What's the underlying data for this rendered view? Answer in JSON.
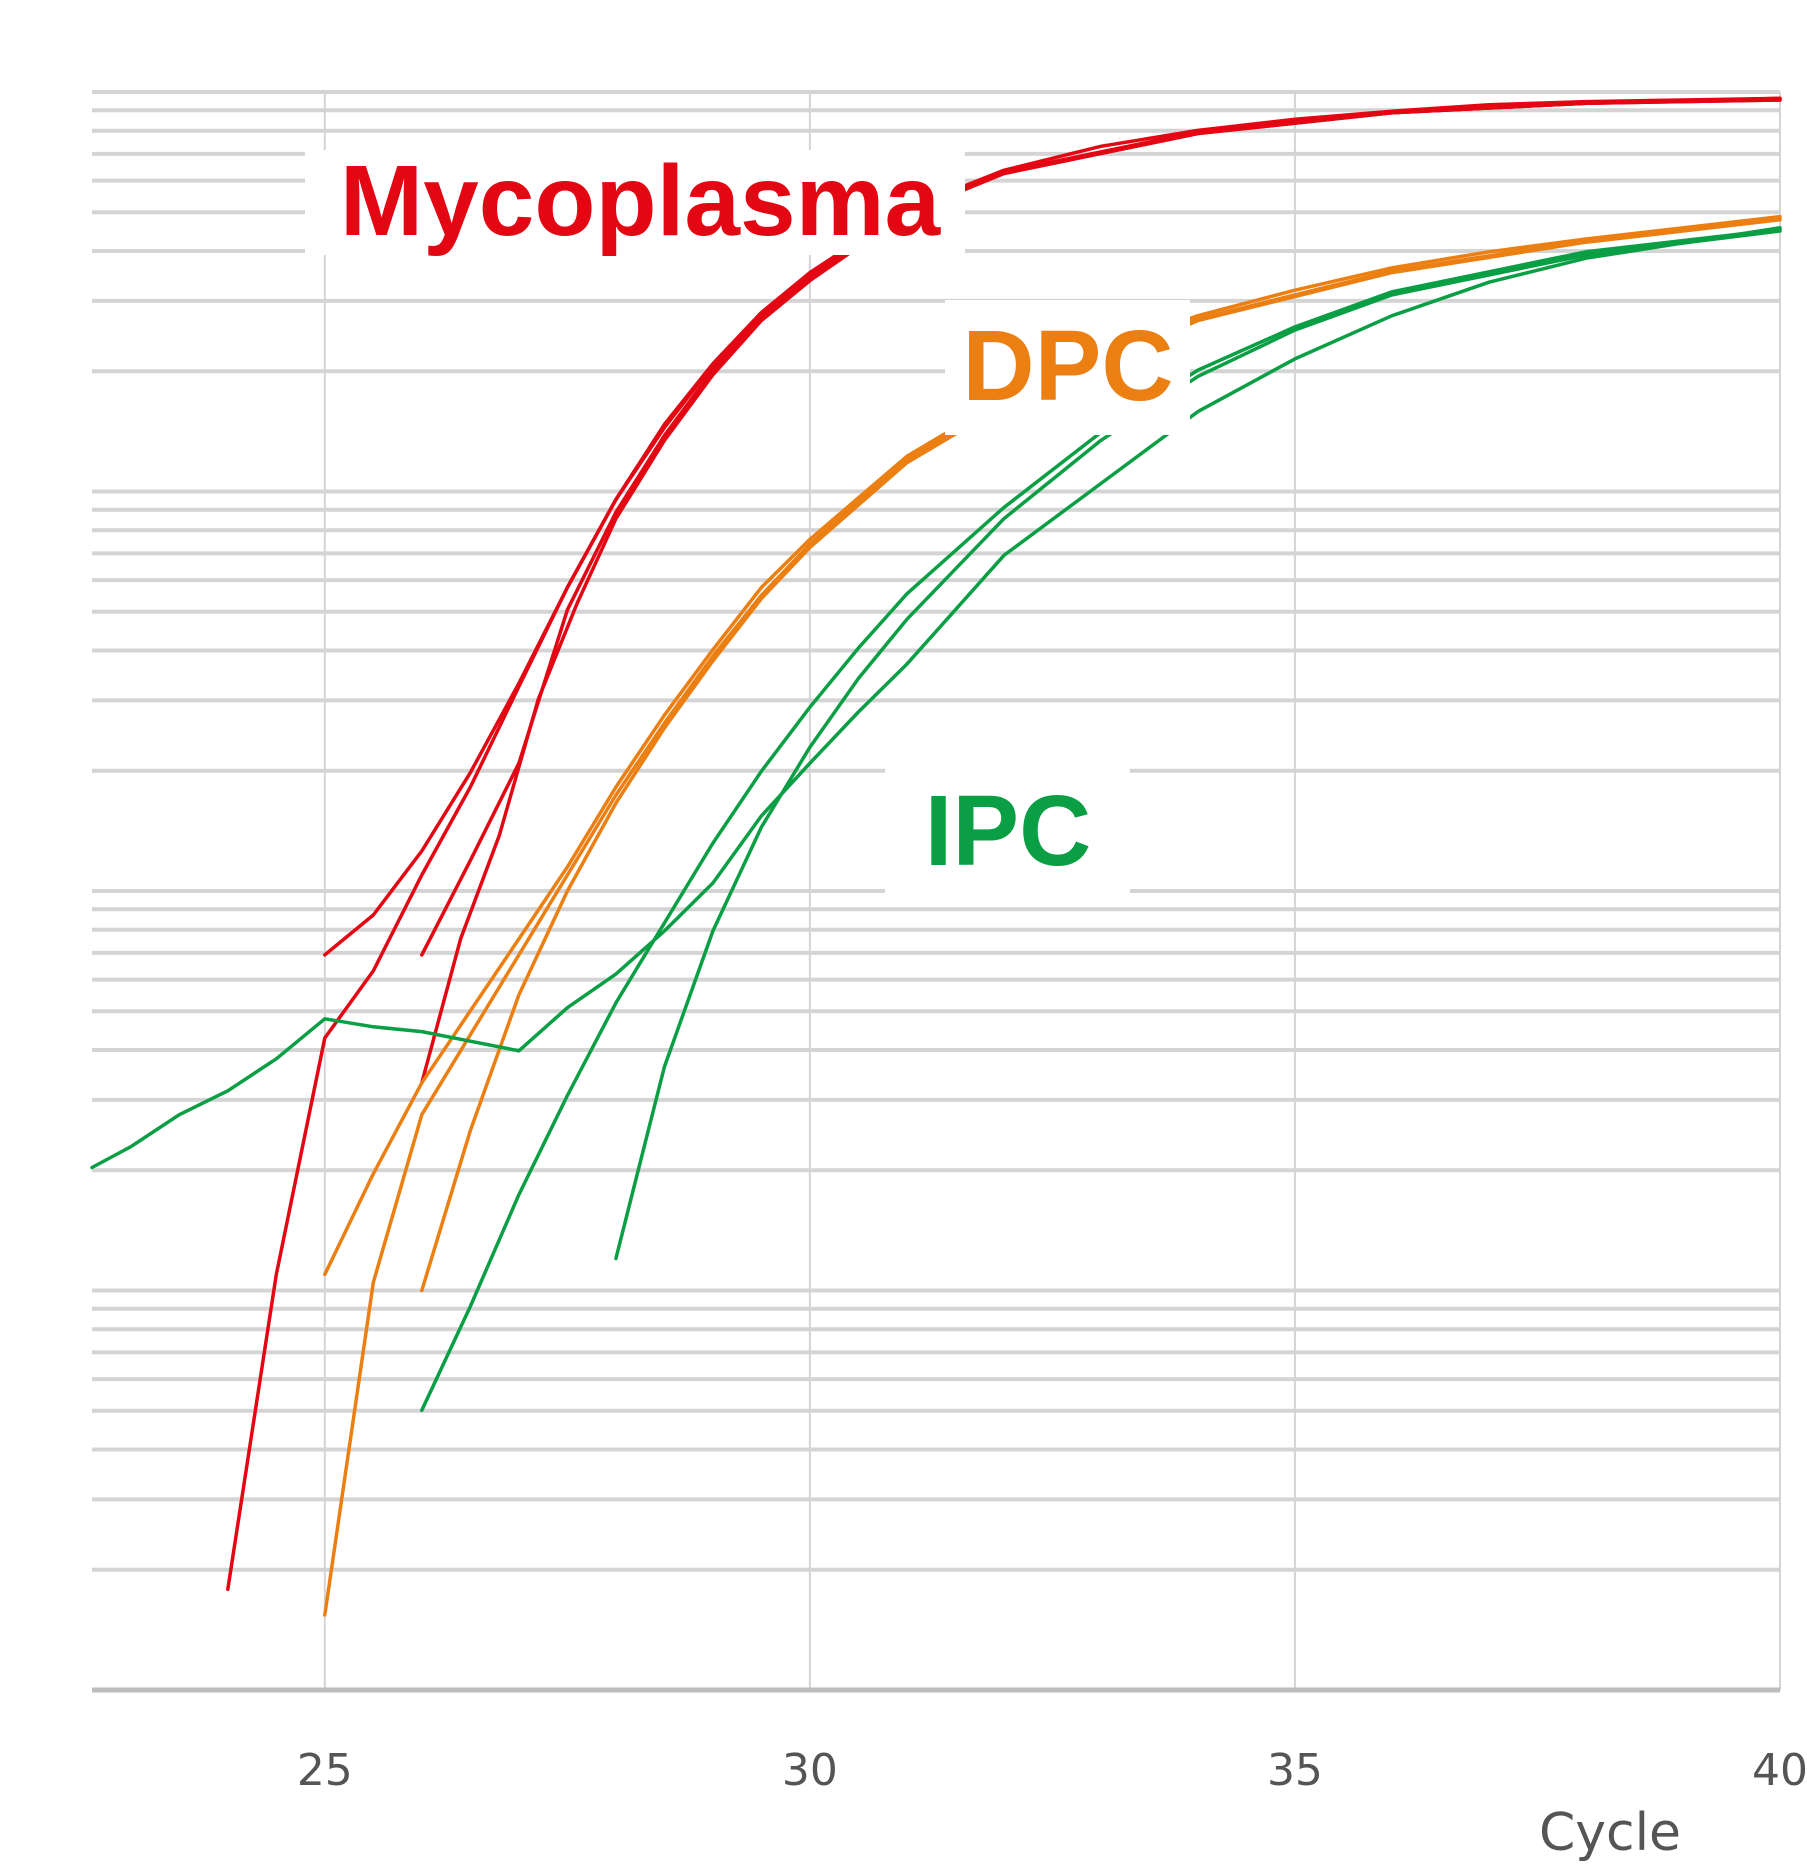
{
  "chart_data": {
    "type": "line",
    "title": "",
    "xlabel": "Cycle",
    "ylabel": "",
    "xlim": [
      22.6,
      40
    ],
    "ylim": [
      0,
      1
    ],
    "x_ticks": [
      25,
      30,
      35,
      40
    ],
    "x_tick_labels": [
      "25",
      "30",
      "35",
      "40"
    ],
    "log_y_grid": true,
    "grid_x": true,
    "legend": "none",
    "colors": {
      "Mycoplasma": "#e30613",
      "DPC": "#ec7f12",
      "IPC": "#0a9f45",
      "grid": "#d4d4d4",
      "axis": "#bdbdbd"
    },
    "annotations": [
      {
        "text": "Mycoplasma",
        "color": "#e30613"
      },
      {
        "text": "DPC",
        "color": "#ec7f12"
      },
      {
        "text": "IPC",
        "color": "#0a9f45"
      }
    ],
    "series": [
      {
        "group": "Mycoplasma",
        "x": [
          24.0,
          24.5,
          25.0,
          25.5,
          26.0,
          26.5,
          27.0,
          27.5,
          28.0,
          28.5,
          29.0,
          29.5,
          30.0,
          31.0,
          32.0,
          33.0,
          34.0,
          35.0,
          36.0,
          37.0,
          38.0,
          39.0,
          40.0
        ],
        "y": [
          0.063,
          0.26,
          0.408,
          0.45,
          0.51,
          0.565,
          0.628,
          0.69,
          0.745,
          0.792,
          0.83,
          0.862,
          0.887,
          0.927,
          0.951,
          0.966,
          0.976,
          0.983,
          0.988,
          0.992,
          0.994,
          0.995,
          0.996
        ]
      },
      {
        "group": "Mycoplasma",
        "x": [
          25.0,
          25.5,
          26.0,
          26.5,
          27.0,
          27.5,
          28.0,
          28.5,
          29.0,
          29.5,
          30.0,
          31.0,
          32.0,
          34.0,
          36.0,
          38.0,
          40.0
        ],
        "y": [
          0.46,
          0.485,
          0.525,
          0.574,
          0.63,
          0.69,
          0.745,
          0.79,
          0.829,
          0.861,
          0.886,
          0.926,
          0.95,
          0.975,
          0.987,
          0.993,
          0.996
        ]
      },
      {
        "group": "Mycoplasma",
        "x": [
          26.0,
          26.5,
          27.0,
          27.5,
          28.0,
          28.5,
          29.0,
          29.5,
          30.0,
          31.0,
          32.0,
          34.0,
          36.0,
          38.0,
          40.0
        ],
        "y": [
          0.46,
          0.519,
          0.58,
          0.676,
          0.737,
          0.785,
          0.826,
          0.859,
          0.884,
          0.925,
          0.949,
          0.974,
          0.987,
          0.993,
          0.995
        ]
      },
      {
        "group": "Mycoplasma",
        "x": [
          26.0,
          26.4,
          26.8,
          27.2,
          27.6,
          28.0,
          28.5,
          29.0,
          29.5,
          30.0,
          31.0,
          32.0,
          34.0,
          36.0,
          38.0,
          40.0
        ],
        "y": [
          0.38,
          0.47,
          0.535,
          0.62,
          0.68,
          0.733,
          0.782,
          0.823,
          0.857,
          0.882,
          0.924,
          0.949,
          0.974,
          0.987,
          0.993,
          0.995
        ]
      },
      {
        "group": "DPC",
        "x": [
          25.0,
          25.5,
          26.0,
          26.5,
          27.0,
          27.5,
          28.0,
          28.5,
          29.0,
          29.5,
          30.0,
          31.0,
          32.0,
          33.0,
          34.0,
          35.0,
          36.0,
          37.0,
          38.0,
          40.0
        ],
        "y": [
          0.26,
          0.323,
          0.38,
          0.425,
          0.47,
          0.515,
          0.565,
          0.61,
          0.651,
          0.69,
          0.72,
          0.772,
          0.808,
          0.838,
          0.86,
          0.876,
          0.89,
          0.9,
          0.908,
          0.922
        ]
      },
      {
        "group": "DPC",
        "x": [
          25.0,
          25.5,
          26.0,
          26.5,
          27.0,
          27.5,
          28.0,
          28.5,
          29.0,
          29.5,
          30.0,
          31.0,
          32.0,
          34.0,
          36.0,
          38.0,
          40.0
        ],
        "y": [
          0.047,
          0.255,
          0.36,
          0.41,
          0.46,
          0.51,
          0.56,
          0.605,
          0.647,
          0.685,
          0.717,
          0.77,
          0.806,
          0.858,
          0.888,
          0.907,
          0.921
        ]
      },
      {
        "group": "DPC",
        "x": [
          26.0,
          26.5,
          27.0,
          27.5,
          28.0,
          28.5,
          29.0,
          29.5,
          30.0,
          31.0,
          32.0,
          34.0,
          36.0,
          38.0,
          40.0
        ],
        "y": [
          0.25,
          0.35,
          0.435,
          0.5,
          0.555,
          0.602,
          0.644,
          0.683,
          0.715,
          0.768,
          0.804,
          0.857,
          0.887,
          0.906,
          0.92
        ]
      },
      {
        "group": "IPC",
        "x": [
          22.6,
          23.0,
          23.5,
          24.0,
          24.5,
          25.0,
          25.5,
          26.0,
          26.5,
          27.0,
          27.5,
          28.0,
          28.5,
          29.0,
          29.5,
          30.0,
          30.5,
          31.0,
          32.0,
          33.0,
          34.0,
          35.0,
          36.0,
          37.0,
          38.0,
          40.0
        ],
        "y": [
          0.327,
          0.34,
          0.36,
          0.375,
          0.395,
          0.42,
          0.415,
          0.412,
          0.406,
          0.4,
          0.427,
          0.448,
          0.475,
          0.505,
          0.547,
          0.58,
          0.612,
          0.642,
          0.71,
          0.755,
          0.8,
          0.833,
          0.86,
          0.881,
          0.896,
          0.915
        ]
      },
      {
        "group": "IPC",
        "x": [
          26.0,
          26.5,
          27.0,
          27.5,
          28.0,
          28.5,
          29.0,
          29.5,
          30.0,
          30.5,
          31.0,
          32.0,
          33.0,
          34.0,
          35.0,
          36.0,
          38.0,
          40.0
        ],
        "y": [
          0.175,
          0.24,
          0.31,
          0.372,
          0.43,
          0.48,
          0.53,
          0.575,
          0.615,
          0.652,
          0.686,
          0.74,
          0.787,
          0.826,
          0.853,
          0.875,
          0.9,
          0.914
        ]
      },
      {
        "group": "IPC",
        "x": [
          28.0,
          28.5,
          29.0,
          29.5,
          30.0,
          30.5,
          31.0,
          32.0,
          33.0,
          34.0,
          35.0,
          36.0,
          38.0,
          40.0
        ],
        "y": [
          0.27,
          0.39,
          0.475,
          0.54,
          0.59,
          0.633,
          0.67,
          0.733,
          0.782,
          0.822,
          0.851,
          0.873,
          0.898,
          0.913
        ]
      }
    ]
  }
}
